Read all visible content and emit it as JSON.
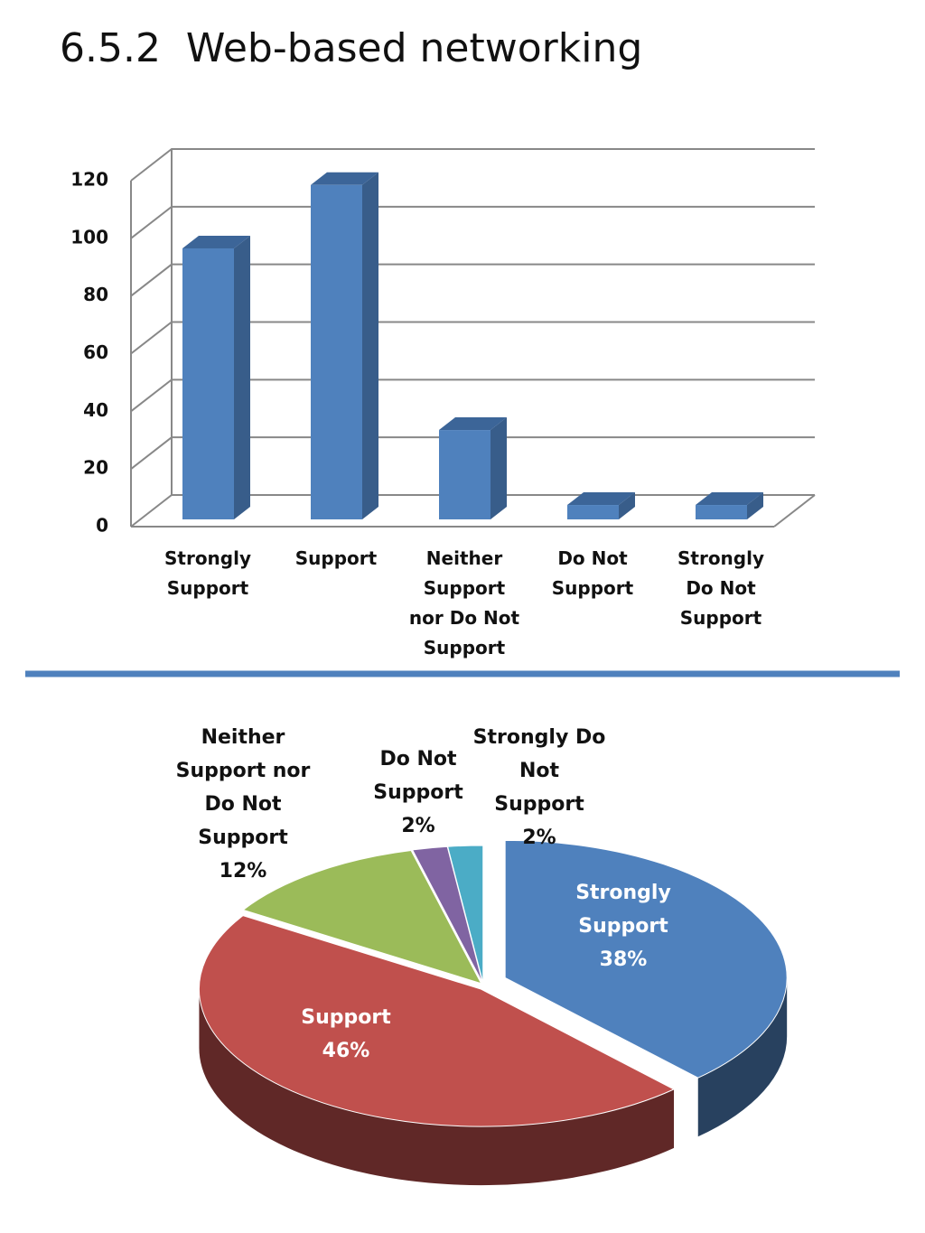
{
  "title": "6.5.2  Web-based networking",
  "chart_data": [
    {
      "type": "bar",
      "categories": [
        "Strongly Support",
        "Support",
        "Neither Support nor Do Not Support",
        "Do Not Support",
        "Strongly Do Not Support"
      ],
      "values": [
        94,
        116,
        31,
        5,
        5
      ],
      "color": "#4f81bd",
      "ylim": [
        0,
        120
      ],
      "yticks": [
        0,
        20,
        40,
        60,
        80,
        100,
        120
      ],
      "grid": true
    },
    {
      "type": "pie",
      "categories": [
        "Strongly Support",
        "Support",
        "Neither Support nor Do Not Support",
        "Do Not Support",
        "Strongly Do Not Support"
      ],
      "values": [
        38,
        46,
        12,
        2,
        2
      ],
      "value_labels": [
        "38%",
        "46%",
        "12%",
        "2%",
        "2%"
      ],
      "colors": [
        "#4f81bd",
        "#c0504d",
        "#9bbb59",
        "#8064a2",
        "#4bacc6"
      ]
    }
  ]
}
